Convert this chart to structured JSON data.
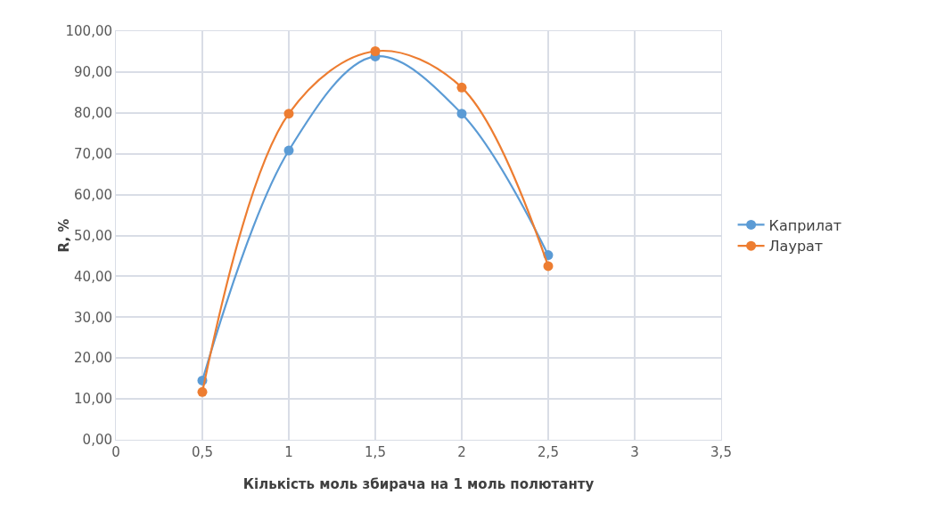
{
  "chart_data": {
    "type": "line",
    "xlabel": "Кількість моль збирача на 1 моль полютанту",
    "ylabel": "R, %",
    "x": [
      0.5,
      1,
      1.5,
      2,
      2.5
    ],
    "series": [
      {
        "name": "Каприлат",
        "color": "#5b9bd5",
        "values": [
          14.5,
          70.8,
          93.8,
          79.8,
          45.2
        ]
      },
      {
        "name": "Лаурат",
        "color": "#ed7d31",
        "values": [
          11.7,
          79.8,
          95.1,
          86.2,
          42.5
        ]
      }
    ],
    "xlim": [
      0,
      3.5
    ],
    "xticks": [
      0,
      {
        "value": 0.5,
        "label": "0,5"
      },
      1,
      {
        "value": 1.5,
        "label": "1,5"
      },
      2,
      {
        "value": 2.5,
        "label": "2,5"
      },
      3,
      {
        "value": 3.5,
        "label": "3,5"
      }
    ],
    "ylim": [
      0,
      100
    ],
    "yticks": [
      {
        "value": 0,
        "label": "0,00"
      },
      {
        "value": 10,
        "label": "10,00"
      },
      {
        "value": 20,
        "label": "20,00"
      },
      {
        "value": 30,
        "label": "30,00"
      },
      {
        "value": 40,
        "label": "40,00"
      },
      {
        "value": 50,
        "label": "50,00"
      },
      {
        "value": 60,
        "label": "60,00"
      },
      {
        "value": 70,
        "label": "70,00"
      },
      {
        "value": 80,
        "label": "80,00"
      },
      {
        "value": 90,
        "label": "90,00"
      },
      {
        "value": 100,
        "label": "100,00"
      }
    ],
    "grid": true,
    "legend": "right",
    "marker": "circle",
    "line_style": "solid"
  }
}
